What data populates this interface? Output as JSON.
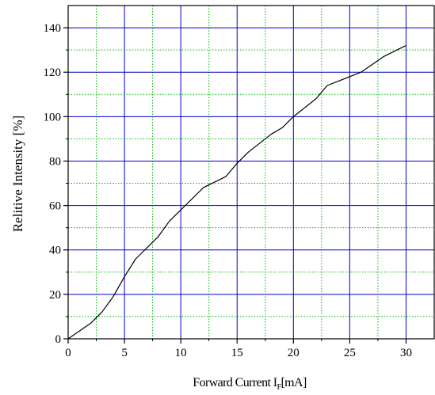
{
  "chart_data": {
    "type": "line",
    "title": "",
    "xlabel": {
      "main": "Forward Current I",
      "subscript": "F",
      "unit": "[mA]"
    },
    "ylabel": "Relitive Intensity [%]",
    "xlim": [
      0,
      32.5
    ],
    "ylim": [
      0,
      150
    ],
    "x_ticks": [
      0,
      5,
      10,
      15,
      20,
      25,
      30
    ],
    "y_ticks": [
      0,
      20,
      40,
      60,
      80,
      100,
      120,
      140
    ],
    "grid": {
      "major": true,
      "minor": true,
      "major_color": "#0000cc",
      "minor_color": "#00bb00"
    },
    "line_color": "#000000",
    "series": [
      {
        "x": [
          0,
          2,
          3,
          4,
          5,
          6,
          8,
          9,
          10,
          12,
          14,
          15,
          16,
          18,
          19,
          20,
          22,
          23,
          24,
          26,
          28,
          30
        ],
        "values": [
          0,
          7,
          12,
          19,
          28,
          36,
          46,
          53,
          58,
          68,
          73,
          79,
          84,
          92,
          95,
          100,
          108,
          114,
          116,
          120,
          127,
          132
        ]
      }
    ]
  }
}
